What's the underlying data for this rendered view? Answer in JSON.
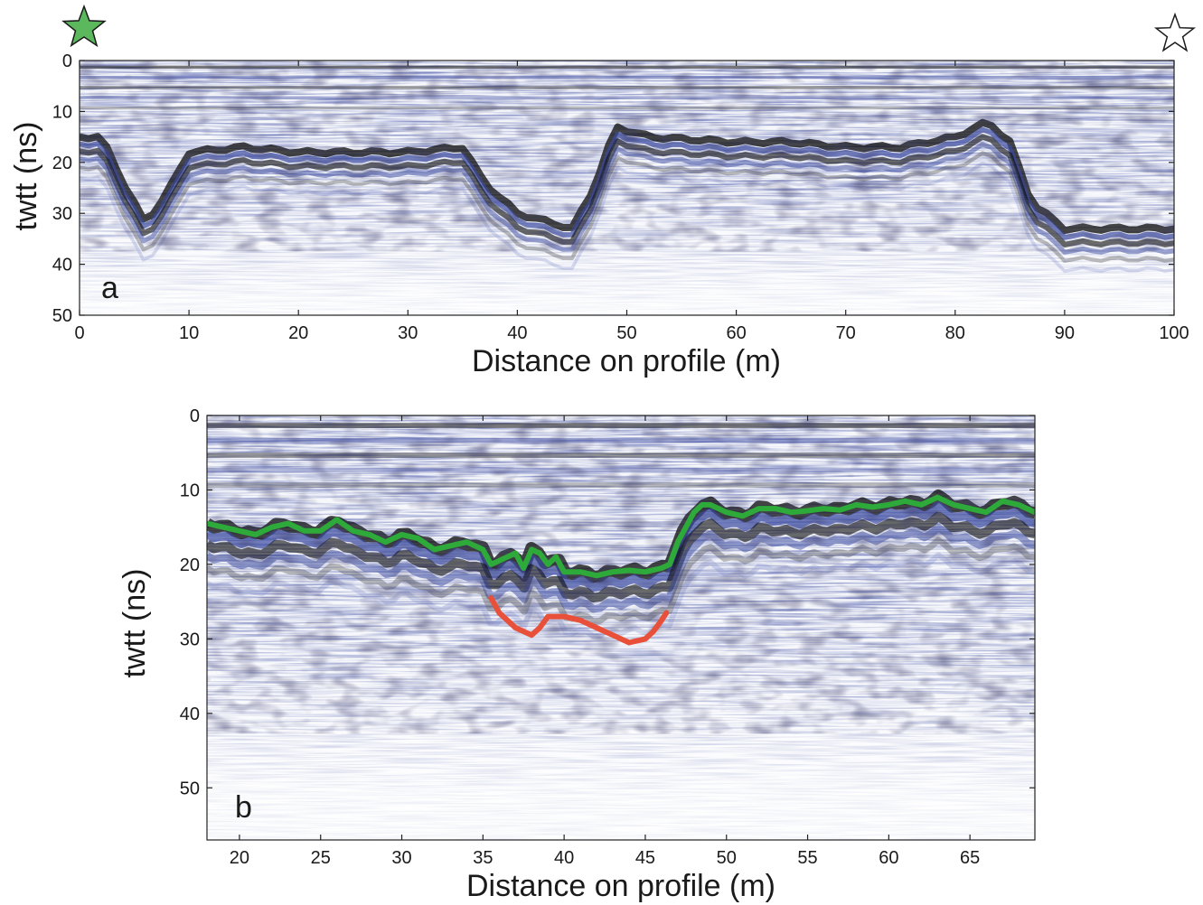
{
  "chart_data": [
    {
      "type": "heatmap",
      "panel_label": "a",
      "xlabel": "Distance on profile (m)",
      "ylabel": "twtt (ns)",
      "xlim": [
        0,
        100
      ],
      "ylim": [
        50,
        0
      ],
      "x_ticks": [
        0,
        10,
        20,
        30,
        40,
        50,
        60,
        70,
        80,
        90,
        100
      ],
      "y_ticks": [
        0,
        10,
        20,
        30,
        40,
        50
      ],
      "colormap": [
        "#ffffff",
        "#3a4aa0",
        "#000000"
      ],
      "start_marker": {
        "symbol": "star",
        "fill": "#5cb85c"
      },
      "end_marker": {
        "symbol": "star",
        "fill": "#ffffff"
      },
      "reflector_profile": {
        "x": [
          0,
          2,
          4,
          6,
          8,
          10,
          15,
          20,
          25,
          30,
          35,
          37,
          40,
          45,
          47,
          49,
          52,
          60,
          65,
          70,
          75,
          80,
          83,
          85,
          87,
          90,
          95,
          100
        ],
        "y": [
          15,
          15,
          24,
          32,
          26,
          18,
          17,
          18,
          18,
          18,
          17,
          24,
          30,
          33,
          25,
          13,
          15,
          16,
          16,
          17,
          17,
          15,
          12,
          16,
          28,
          33,
          33,
          33
        ]
      }
    },
    {
      "type": "heatmap",
      "panel_label": "b",
      "xlabel": "Distance on profile (m)",
      "ylabel": "twtt (ns)",
      "xlim": [
        18,
        69
      ],
      "ylim": [
        57,
        0
      ],
      "x_ticks": [
        20,
        25,
        30,
        35,
        40,
        45,
        50,
        55,
        60,
        65
      ],
      "y_ticks": [
        0,
        10,
        20,
        30,
        40,
        50
      ],
      "colormap": [
        "#ffffff",
        "#3a4aa0",
        "#000000"
      ],
      "series": [
        {
          "color": "#2eaa3a",
          "x": [
            18,
            20,
            21,
            22,
            23,
            24,
            25,
            26,
            27,
            28,
            29,
            30,
            31,
            32,
            33,
            34,
            35,
            35.5,
            36,
            37,
            37.5,
            38,
            38.5,
            39,
            39.5,
            40,
            41,
            42,
            43,
            44,
            45,
            46,
            46.5,
            47,
            48,
            48.5,
            49,
            50,
            51,
            52,
            53,
            54,
            55,
            56,
            57,
            58,
            59,
            60,
            61,
            62,
            63,
            64,
            65,
            66,
            67,
            68,
            69
          ],
          "y": [
            14.5,
            15.5,
            16,
            15,
            14.5,
            15.5,
            15.5,
            14,
            15.5,
            16,
            17,
            16,
            16.5,
            18,
            17.5,
            17,
            18,
            20,
            19.5,
            18.5,
            20.5,
            18,
            18.5,
            20,
            19,
            21,
            21,
            21.5,
            21,
            20.8,
            21,
            20.5,
            20,
            17,
            13,
            12,
            12,
            13,
            13.5,
            12.5,
            12.5,
            13,
            12.8,
            12.5,
            12.7,
            12,
            12.3,
            12,
            11.5,
            12,
            11,
            12,
            12.5,
            13,
            11.5,
            12,
            13
          ]
        },
        {
          "color": "#e8503a",
          "x": [
            35.5,
            36,
            37,
            38,
            38.5,
            39,
            40,
            41,
            42,
            43,
            44,
            45,
            45.5,
            46,
            46.3
          ],
          "y": [
            24.5,
            26.5,
            28.5,
            29.5,
            28.5,
            27,
            27,
            27.5,
            28.5,
            29.5,
            30.5,
            30,
            29,
            27.5,
            26.5
          ]
        }
      ]
    }
  ]
}
